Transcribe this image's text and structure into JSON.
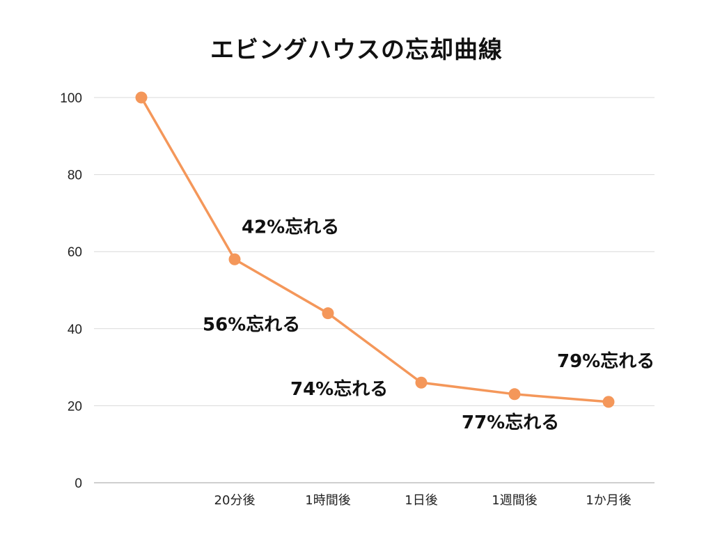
{
  "chart_data": {
    "type": "line",
    "title": "エビングハウスの忘却曲線",
    "xlabel": "",
    "ylabel": "",
    "categories": [
      "",
      "20分後",
      "1時間後",
      "1日後",
      "1週間後",
      "1か月後"
    ],
    "series": [
      {
        "values": [
          100,
          58,
          44,
          26,
          23,
          21
        ]
      }
    ],
    "yticks": [
      "0",
      "20",
      "40",
      "60",
      "80",
      "100"
    ],
    "ylim": [
      0,
      100
    ],
    "grid": true,
    "annotations": [
      {
        "text": "42%忘れる",
        "index": 1
      },
      {
        "text": "56%忘れる",
        "index": 2
      },
      {
        "text": "74%忘れる",
        "index": 3
      },
      {
        "text": "77%忘れる",
        "index": 4
      },
      {
        "text": "79%忘れる",
        "index": 5
      }
    ],
    "colors": {
      "line": "#f4975a",
      "grid": "#d9d9d9",
      "axis": "#bfbfbf"
    }
  }
}
